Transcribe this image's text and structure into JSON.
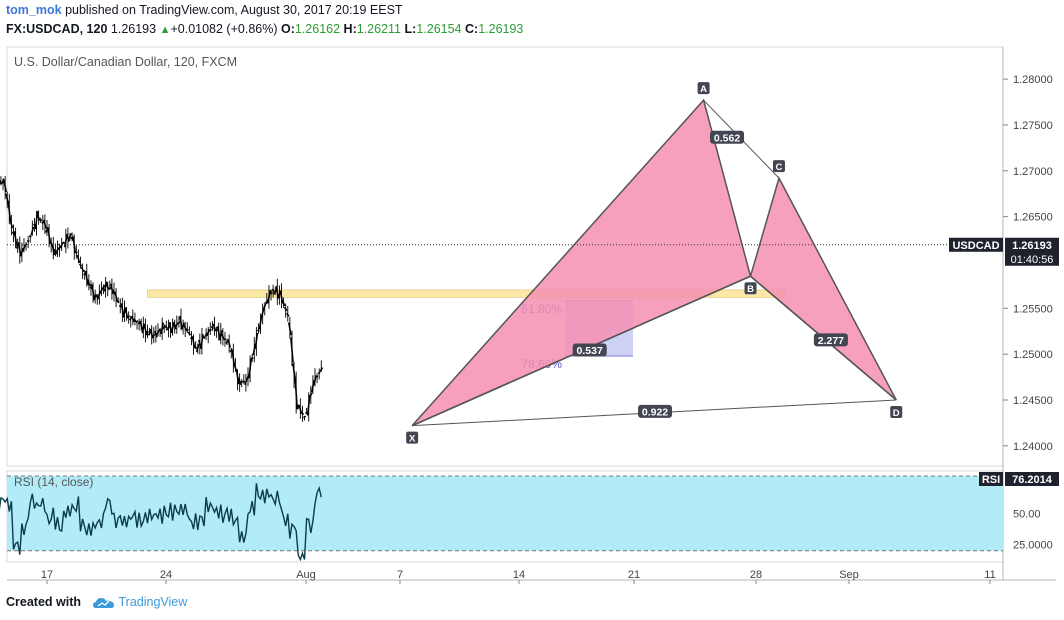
{
  "header": {
    "user": "tom_mok",
    "published_text": "published on TradingView.com, August 30, 2017 20:19 EEST",
    "symbol": "FX:USDCAD, 120",
    "last": "1.26193",
    "change": "+0.01082 (+0.86%)",
    "o_label": "O:",
    "o": "1.26162",
    "h_label": "H:",
    "h": "1.26211",
    "l_label": "L:",
    "l": "1.26154",
    "c_label": "C:",
    "c": "1.26193"
  },
  "footer": {
    "created_with": "Created with",
    "brand": "TradingView",
    "icon": "tradingview-cloud-icon"
  },
  "colors": {
    "pattern_fill": "#f48fb1",
    "pattern_stroke": "#555555",
    "zone_fill": "#fbe7a6",
    "fib_box": "#c7c8f5",
    "rsi_band": "#b3ecf9",
    "fib_text": "#5a55d6"
  },
  "chart_data": [
    {
      "type": "line",
      "title": "U.S. Dollar/Canadian Dollar, 120, FXCM",
      "x_ticks": [
        "17",
        "24",
        "Aug",
        "7",
        "14",
        "21",
        "28",
        "Sep",
        "11"
      ],
      "y_ticks": [
        "1.28000",
        "1.27500",
        "1.27000",
        "1.26500",
        "1.25500",
        "1.25000",
        "1.24500",
        "1.24000"
      ],
      "ylim": [
        1.2378,
        1.2835
      ],
      "price_label": "USDCAD",
      "price_value": "1.26193",
      "countdown": "01:40:56",
      "last_price": 1.26193,
      "pattern_points": [
        {
          "label": "X",
          "t": 38.8,
          "price": 1.2422
        },
        {
          "label": "A",
          "t": 56.2,
          "price": 1.2777
        },
        {
          "label": "B",
          "t": 59.0,
          "price": 1.2585
        },
        {
          "label": "C",
          "t": 60.7,
          "price": 1.2692
        },
        {
          "label": "D",
          "t": 67.7,
          "price": 1.245
        }
      ],
      "ratios": [
        {
          "label": "0.562",
          "t": 57.6,
          "price": 1.2736
        },
        {
          "label": "0.537",
          "t": 49.4,
          "price": 1.2504
        },
        {
          "label": "2.277",
          "t": 63.8,
          "price": 1.2515
        },
        {
          "label": "0.922",
          "t": 53.3,
          "price": 1.2437
        }
      ],
      "fib_levels": [
        {
          "label": "61.80%",
          "price": 1.2558
        },
        {
          "label": "78.60%",
          "price": 1.2498
        }
      ],
      "zone": {
        "t_start": 23.0,
        "t_end": 61.1,
        "low": 1.2562,
        "high": 1.257
      },
      "series": [
        {
          "t": [
            10,
            10.5,
            11,
            11.5,
            12,
            12.5,
            13,
            13.5,
            14,
            14.5,
            15,
            15.5,
            16,
            16.5,
            17,
            17.5,
            18,
            18.5,
            19,
            19.5,
            20,
            20.5,
            21,
            21.5,
            22,
            22.5,
            23,
            23.5,
            24,
            24.5,
            25,
            25.5,
            26,
            26.5,
            27,
            27.5,
            28,
            28.5,
            29,
            29.5,
            30,
            30.5,
            31,
            31.5,
            32,
            32.5,
            33,
            33.5,
            34,
            34.5,
            35,
            35.5,
            36,
            36.5,
            37,
            37.5,
            38,
            38.5,
            39,
            39.5,
            40,
            40.5,
            41,
            41.5,
            42,
            42.5,
            43,
            43.5,
            44,
            44.5,
            45,
            45.5,
            46,
            46.5,
            47,
            47.5,
            48,
            48.5,
            49,
            49.5,
            50,
            50.5,
            51,
            51.5,
            52,
            52.5,
            53,
            53.5,
            54,
            54.5,
            55,
            55.5,
            56,
            56.5,
            57,
            57.5,
            58,
            58.5,
            59,
            59.5,
            60,
            60.5,
            61,
            61.5,
            62,
            62.5,
            63,
            63.5,
            64,
            64.5,
            65,
            65.5,
            66,
            66.5,
            67,
            67.5,
            68,
            68.5,
            69,
            69.5,
            70,
            70.5,
            71,
            71.5,
            72
          ],
          "price": [
            1.275,
            1.2738,
            1.2742,
            1.273,
            1.27,
            1.266,
            1.2655,
            1.266,
            1.268,
            1.269,
            1.2635,
            1.261,
            1.2625,
            1.265,
            1.264,
            1.261,
            1.262,
            1.263,
            1.26,
            1.258,
            1.256,
            1.2575,
            1.257,
            1.255,
            1.254,
            1.2535,
            1.2525,
            1.252,
            1.253,
            1.2528,
            1.2535,
            1.2525,
            1.2505,
            1.252,
            1.253,
            1.252,
            1.251,
            1.247,
            1.247,
            1.251,
            1.255,
            1.257,
            1.2565,
            1.254,
            1.2445,
            1.243,
            1.247,
            1.2485,
            1.248,
            1.25,
            1.255,
            1.2555,
            1.258,
            1.26,
            1.259,
            1.2575,
            1.261,
            1.2635,
            1.266,
            1.268,
            1.27,
            1.271,
            1.2685,
            1.267,
            1.2665,
            1.268,
            1.27,
            1.2695,
            1.271,
            1.273,
            1.274,
            1.273,
            1.271,
            1.269,
            1.271,
            1.272,
            1.274,
            1.276,
            1.277,
            1.276,
            1.272,
            1.265,
            1.261,
            1.259,
            1.263,
            1.262,
            1.264,
            1.26,
            1.256,
            1.257,
            1.257,
            1.256,
            1.254,
            1.257,
            1.259,
            1.257,
            1.256,
            1.253,
            1.252,
            1.2505,
            1.249,
            1.248,
            1.247,
            1.246,
            1.245,
            1.248,
            1.251,
            1.244,
            1.247,
            1.252,
            1.251,
            1.253,
            1.25,
            1.253,
            1.258,
            1.2605,
            1.2619,
            1.2619,
            1.2619,
            1.2619,
            1.2619,
            1.2619,
            1.2619,
            1.2619,
            1.2619
          ]
        }
      ]
    },
    {
      "type": "line",
      "title": "RSI (14, close)",
      "y_ticks": [
        "50.00",
        "25.0000"
      ],
      "ylim": [
        11,
        84
      ],
      "bands": [
        20,
        80
      ],
      "rsi_label": "RSI",
      "rsi_value": "76.2014"
    }
  ]
}
